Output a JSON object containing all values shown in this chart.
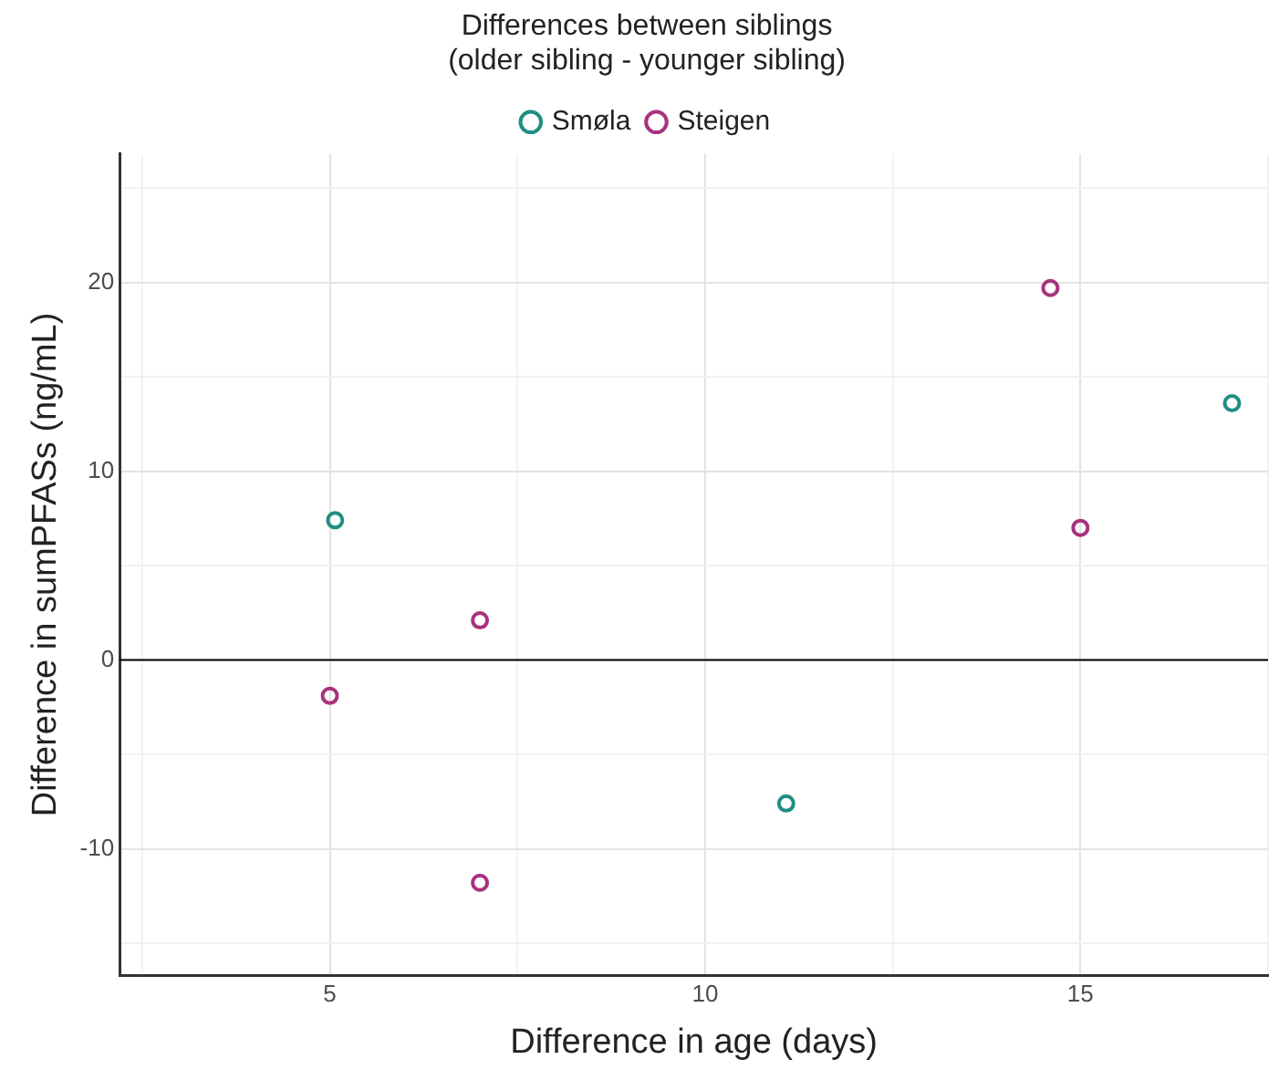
{
  "chart_data": {
    "type": "scatter",
    "title": "Differences between siblings\n(older sibling - younger sibling)",
    "xlabel": "Difference in age (days)",
    "ylabel": "Difference in sumPFASs (ng/mL)",
    "series": [
      {
        "name": "Smøla",
        "color": "#1f8f82",
        "x": [
          5.07,
          11.08,
          17.02
        ],
        "values": [
          7.4,
          -7.6,
          13.6
        ]
      },
      {
        "name": "Steigen",
        "color": "#a8327f",
        "x": [
          5.0,
          7.0,
          7.0,
          14.6,
          15.0
        ],
        "values": [
          -1.9,
          2.1,
          -11.8,
          19.7,
          7.0
        ]
      }
    ],
    "xlim": [
      2.2,
      17.5
    ],
    "ylim": [
      -16.7,
      26.8
    ],
    "xticks": [
      {
        "value": 2.5,
        "label": null
      },
      5,
      {
        "value": 7.5,
        "label": null
      },
      10,
      {
        "value": 12.5,
        "label": null
      },
      15,
      {
        "value": 17.5,
        "label": null
      }
    ],
    "yticks": [
      {
        "value": -15,
        "label": null
      },
      -10,
      {
        "value": -5,
        "label": null
      },
      0,
      {
        "value": 5,
        "label": null
      },
      10,
      {
        "value": 15,
        "label": null
      },
      20,
      {
        "value": 25,
        "label": null
      }
    ],
    "ref_lines": [
      {
        "axis": "y",
        "value": 0,
        "color": "#000000"
      }
    ],
    "grid": true,
    "legend": "top",
    "marker": "circle"
  }
}
